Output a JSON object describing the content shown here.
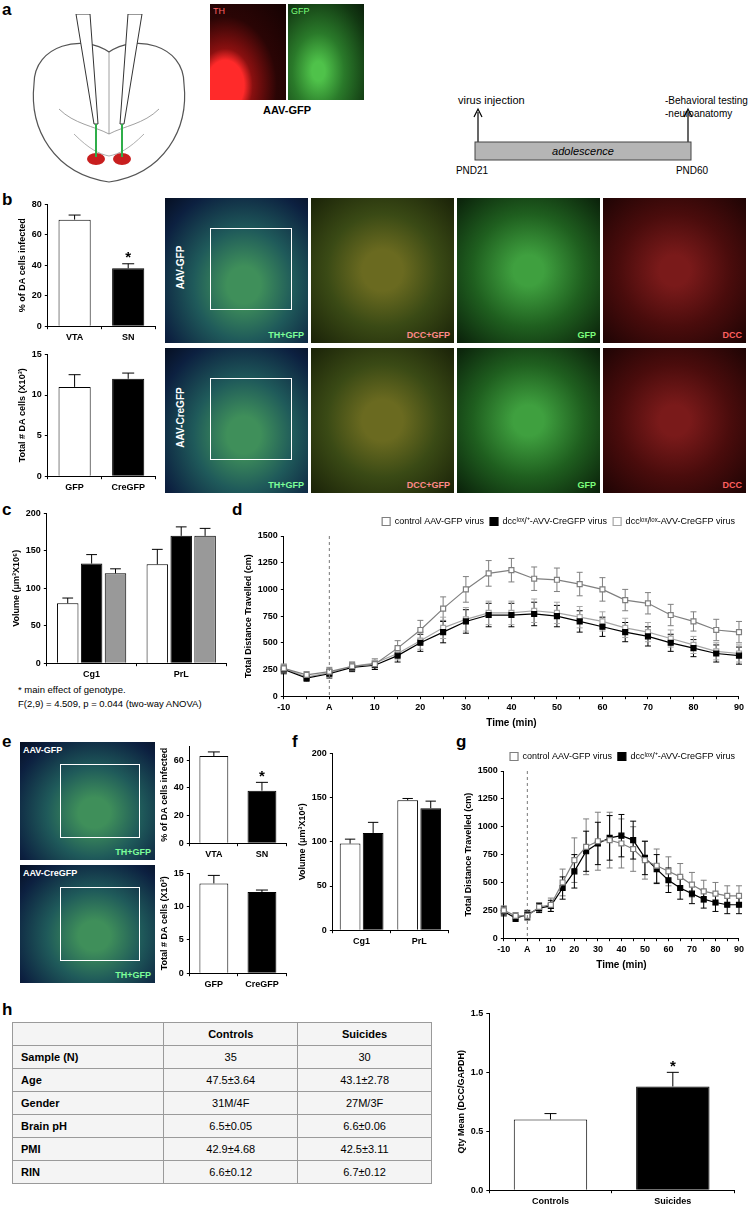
{
  "figure": {
    "panel_labels": [
      "a",
      "b",
      "c",
      "d",
      "e",
      "f",
      "g",
      "h"
    ],
    "panel_a": {
      "stain_labels": [
        "TH",
        "GFP"
      ],
      "caption": "AAV-GFP",
      "timeline": {
        "start_text": "virus injection",
        "start": "PND21",
        "bar": "adolescence",
        "end_text": [
          "-Behavioral testing",
          "-neuroanatomy"
        ],
        "end": "PND60"
      }
    },
    "panel_b_images": {
      "rows": [
        "AAV-GFP",
        "AAV-CreGFP"
      ],
      "columns": [
        "TH+GFP",
        "DCC+GFP",
        "GFP",
        "DCC"
      ]
    },
    "panel_c_notes": [
      "* main effect of genotype.",
      "F(2,9) = 4.509, p = 0.044 (two-way ANOVA)"
    ],
    "panel_e_images": {
      "rows": [
        "AAV-GFP",
        "AAV-CreGFP"
      ],
      "columns": [
        "TH+GFP"
      ]
    },
    "panel_h_table": {
      "columns": [
        "Controls",
        "Suicides"
      ],
      "rows": [
        [
          "Sample (N)",
          "35",
          "30"
        ],
        [
          "Age",
          "47.5±3.64",
          "43.1±2.78"
        ],
        [
          "Gender",
          "31M/4F",
          "27M/3F"
        ],
        [
          "Brain pH",
          "6.5±0.05",
          "6.6±0.06"
        ],
        [
          "PMI",
          "42.9±4.68",
          "42.5±3.11"
        ],
        [
          "RIN",
          "6.6±0.12",
          "6.7±0.12"
        ]
      ]
    }
  },
  "chart_data": [
    {
      "type": "bar",
      "ylabel": "% of DA cells infected",
      "categories": [
        "VTA",
        "SN"
      ],
      "values": [
        70,
        38
      ],
      "errors": [
        3,
        3
      ],
      "colors": [
        "#ffffff",
        "#000000"
      ],
      "ylim": [
        0,
        80
      ],
      "yticks": [
        0,
        20,
        40,
        60,
        80
      ],
      "grid": false,
      "annotations": [
        {
          "category": "SN",
          "text": "*"
        }
      ]
    },
    {
      "type": "bar",
      "ylabel": "Total # DA cells (X10³)",
      "categories": [
        "GFP",
        "CreGFP"
      ],
      "values": [
        11,
        12
      ],
      "errors": [
        1.5,
        0.7
      ],
      "colors": [
        "#ffffff",
        "#000000"
      ],
      "ylim": [
        0,
        15
      ],
      "yticks": [
        0,
        5,
        10,
        15
      ],
      "grid": false
    },
    {
      "type": "bar",
      "ylabel": "Volume (μm³X10⁶)",
      "categories": [
        "Cg1",
        "PrL"
      ],
      "series": [
        {
          "color": "#ffffff",
          "values": [
            80,
            132
          ],
          "errors": [
            7,
            20
          ]
        },
        {
          "color": "#000000",
          "values": [
            133,
            170
          ],
          "errors": [
            12,
            12
          ]
        },
        {
          "color": "#999999",
          "values": [
            120,
            170
          ],
          "errors": [
            6,
            10
          ]
        }
      ],
      "ylim": [
        0,
        200
      ],
      "yticks": [
        0,
        50,
        100,
        150,
        200
      ],
      "grid": false
    },
    {
      "type": "line",
      "ylabel": "Total Distance Travelled (cm)",
      "xlabel": "Time (min)",
      "categories": [
        "-10",
        null,
        "A",
        null,
        "10",
        null,
        "20",
        null,
        "30",
        null,
        "40",
        null,
        "50",
        null,
        "60",
        null,
        "70",
        null,
        "80",
        null,
        "90"
      ],
      "series": [
        {
          "name": "control AAV-GFP virus",
          "color": "#7f7f7f",
          "marker": "open-square",
          "values": [
            260,
            200,
            230,
            280,
            300,
            450,
            620,
            820,
            1000,
            1150,
            1180,
            1100,
            1090,
            1050,
            1000,
            900,
            870,
            760,
            700,
            620,
            600
          ],
          "errors": [
            40,
            30,
            40,
            40,
            50,
            70,
            90,
            110,
            120,
            120,
            110,
            110,
            110,
            110,
            110,
            100,
            100,
            100,
            90,
            100,
            100
          ]
        },
        {
          "name": "dccˡᵒˣ/⁺-AVV-CreGFP virus",
          "color": "#000000",
          "marker": "square",
          "values": [
            250,
            170,
            210,
            270,
            290,
            380,
            500,
            600,
            700,
            760,
            760,
            770,
            750,
            700,
            650,
            600,
            560,
            500,
            450,
            400,
            380
          ],
          "errors": [
            40,
            30,
            40,
            40,
            40,
            60,
            80,
            100,
            110,
            110,
            110,
            110,
            100,
            100,
            90,
            90,
            90,
            80,
            80,
            80,
            80
          ]
        },
        {
          "name": "dccˡᵒˣ/ˡᵒˣ-AVV-CreGFP virus",
          "color": "#a6a6a6",
          "marker": "open-square",
          "values": [
            260,
            180,
            220,
            280,
            310,
            400,
            520,
            640,
            720,
            780,
            780,
            800,
            780,
            740,
            700,
            640,
            600,
            540,
            480,
            420,
            400
          ],
          "errors": [
            40,
            30,
            40,
            40,
            40,
            60,
            80,
            100,
            110,
            110,
            110,
            110,
            100,
            100,
            90,
            90,
            90,
            80,
            80,
            80,
            80
          ]
        }
      ],
      "ylim": [
        0,
        1500
      ],
      "yticks": [
        0,
        250,
        500,
        750,
        1000,
        1250,
        1500
      ],
      "grid": false,
      "legend": "top-right",
      "annotations": [
        {
          "category": "A",
          "line_style": "dashed"
        }
      ]
    },
    {
      "type": "bar",
      "ylabel": "% of DA cells infected",
      "categories": [
        "VTA",
        "SN"
      ],
      "values": [
        63,
        38
      ],
      "errors": [
        3,
        6
      ],
      "colors": [
        "#ffffff",
        "#000000"
      ],
      "ylim": [
        0,
        70
      ],
      "yticks": [
        0,
        20,
        40,
        60
      ],
      "grid": false,
      "annotations": [
        {
          "category": "SN",
          "text": "*"
        }
      ]
    },
    {
      "type": "bar",
      "ylabel": "Total # DA cells (X10³)",
      "categories": [
        "GFP",
        "CreGFP"
      ],
      "values": [
        13.5,
        12.2
      ],
      "errors": [
        1.2,
        0.3
      ],
      "colors": [
        "#ffffff",
        "#000000"
      ],
      "ylim": [
        0,
        15
      ],
      "yticks": [
        0,
        5,
        10,
        15
      ],
      "grid": false
    },
    {
      "type": "bar",
      "ylabel": "Volume (μm³X10⁶)",
      "categories": [
        "Cg1",
        "PrL"
      ],
      "series": [
        {
          "color": "#ffffff",
          "values": [
            98,
            147
          ],
          "errors": [
            5,
            2
          ]
        },
        {
          "color": "#000000",
          "values": [
            110,
            138
          ],
          "errors": [
            12,
            8
          ]
        }
      ],
      "ylim": [
        0,
        200
      ],
      "yticks": [
        0,
        50,
        100,
        150,
        200
      ],
      "grid": false
    },
    {
      "type": "line",
      "ylabel": "Total Distance Travelled (cm)",
      "xlabel": "Time (min)",
      "categories": [
        "-10",
        null,
        "A",
        null,
        "10",
        null,
        "20",
        null,
        "30",
        null,
        "40",
        null,
        "50",
        null,
        "60",
        null,
        "70",
        null,
        "80",
        null,
        "90"
      ],
      "series": [
        {
          "name": "control AAV-GFP virus",
          "color": "#7f7f7f",
          "marker": "open-square",
          "values": [
            250,
            200,
            200,
            280,
            300,
            500,
            700,
            820,
            870,
            880,
            850,
            800,
            700,
            650,
            600,
            550,
            480,
            420,
            400,
            380,
            380
          ],
          "errors": [
            40,
            30,
            40,
            40,
            60,
            120,
            200,
            250,
            260,
            250,
            220,
            200,
            170,
            150,
            130,
            120,
            110,
            100,
            100,
            90,
            90
          ]
        },
        {
          "name": "dccˡᵒˣ/⁺-AVV-CreGFP virus",
          "color": "#000000",
          "marker": "square",
          "values": [
            240,
            180,
            210,
            270,
            290,
            450,
            600,
            780,
            850,
            900,
            920,
            880,
            720,
            620,
            520,
            450,
            400,
            350,
            320,
            300,
            300
          ],
          "errors": [
            40,
            30,
            40,
            40,
            50,
            100,
            150,
            180,
            190,
            200,
            190,
            170,
            150,
            130,
            110,
            100,
            90,
            80,
            80,
            80,
            80
          ]
        }
      ],
      "ylim": [
        0,
        1500
      ],
      "yticks": [
        0,
        250,
        500,
        750,
        1000,
        1250,
        1500
      ],
      "grid": false,
      "legend": "top-right",
      "annotations": [
        {
          "category": "A",
          "line_style": "dashed"
        }
      ]
    },
    {
      "type": "bar",
      "ylabel": "Qty Mean (DCC/GAPDH)",
      "categories": [
        "Controls",
        "Suicides"
      ],
      "values": [
        0.6,
        0.88
      ],
      "errors": [
        0.05,
        0.12
      ],
      "colors": [
        "#ffffff",
        "#000000"
      ],
      "ylim": [
        0,
        1.5
      ],
      "yticks": [
        {
          "value": 0,
          "label": "0.0"
        },
        0.5,
        {
          "value": 1,
          "label": "1.0"
        },
        1.5
      ],
      "grid": false,
      "annotations": [
        {
          "category": "Suicides",
          "text": "*"
        }
      ]
    }
  ]
}
